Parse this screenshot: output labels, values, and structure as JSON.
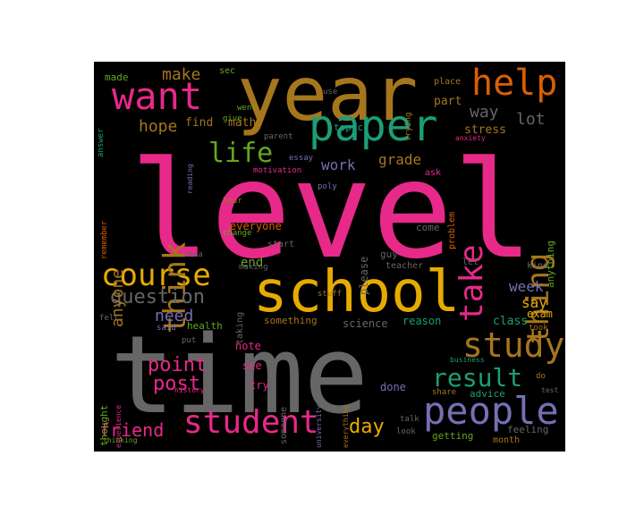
{
  "colors": {
    "pink": "#e7298a",
    "gray": "#666666",
    "gold": "#a6761d",
    "yellow": "#e6ab02",
    "teal": "#1b9e77",
    "orange": "#d95f02",
    "purple": "#7570b3",
    "green": "#66a61e"
  },
  "words": [
    {
      "text": "level",
      "color": "pink"
    },
    {
      "text": "time",
      "color": "gray"
    },
    {
      "text": "year",
      "color": "gold"
    },
    {
      "text": "school",
      "color": "yellow"
    },
    {
      "text": "paper",
      "color": "teal"
    },
    {
      "text": "want",
      "color": "pink"
    },
    {
      "text": "help",
      "color": "orange"
    },
    {
      "text": "people",
      "color": "purple"
    },
    {
      "text": "study",
      "color": "gold"
    },
    {
      "text": "student",
      "color": "pink"
    },
    {
      "text": "course",
      "color": "yellow"
    },
    {
      "text": "think",
      "color": "gold"
    },
    {
      "text": "take",
      "color": "pink"
    },
    {
      "text": "thing",
      "color": "gold"
    },
    {
      "text": "life",
      "color": "green"
    },
    {
      "text": "result",
      "color": "teal"
    },
    {
      "text": "question",
      "color": "gray"
    },
    {
      "text": "point",
      "color": "pink"
    },
    {
      "text": "post",
      "color": "pink"
    },
    {
      "text": "friend",
      "color": "pink"
    },
    {
      "text": "day",
      "color": "yellow"
    },
    {
      "text": "need",
      "color": "purple"
    },
    {
      "text": "make",
      "color": "gold"
    },
    {
      "text": "hope",
      "color": "gold"
    },
    {
      "text": "way",
      "color": "gray"
    },
    {
      "text": "lot",
      "color": "gray"
    },
    {
      "text": "work",
      "color": "purple"
    },
    {
      "text": "grade",
      "color": "gold"
    },
    {
      "text": "anyone",
      "color": "gold"
    },
    {
      "text": "week",
      "color": "purple"
    },
    {
      "text": "say",
      "color": "yellow"
    },
    {
      "text": "end",
      "color": "green"
    },
    {
      "text": "find",
      "color": "gold"
    },
    {
      "text": "math",
      "color": "gold"
    },
    {
      "text": "stress",
      "color": "gold"
    },
    {
      "text": "part",
      "color": "gold"
    },
    {
      "text": "topic",
      "color": "teal"
    },
    {
      "text": "exam",
      "color": "yellow"
    },
    {
      "text": "class",
      "color": "teal"
    },
    {
      "text": "reason",
      "color": "teal"
    },
    {
      "text": "science",
      "color": "gray"
    },
    {
      "text": "something",
      "color": "gold"
    },
    {
      "text": "health",
      "color": "green"
    },
    {
      "text": "note",
      "color": "pink"
    },
    {
      "text": "see",
      "color": "pink"
    },
    {
      "text": "try",
      "color": "pink"
    },
    {
      "text": "done",
      "color": "purple"
    },
    {
      "text": "advice",
      "color": "teal"
    },
    {
      "text": "getting",
      "color": "green"
    },
    {
      "text": "feeling",
      "color": "gray"
    },
    {
      "text": "month",
      "color": "gold"
    },
    {
      "text": "everyone",
      "color": "orange"
    },
    {
      "text": "start",
      "color": "gray"
    },
    {
      "text": "guy",
      "color": "gray"
    },
    {
      "text": "come",
      "color": "gray"
    },
    {
      "text": "teacher",
      "color": "gray"
    },
    {
      "text": "let",
      "color": "gray"
    },
    {
      "text": "kind",
      "color": "gray"
    },
    {
      "text": "please",
      "color": "gray"
    },
    {
      "text": "problem",
      "color": "orange"
    },
    {
      "text": "anything",
      "color": "green"
    },
    {
      "text": "made",
      "color": "green"
    },
    {
      "text": "sec",
      "color": "green"
    },
    {
      "text": "went",
      "color": "green"
    },
    {
      "text": "give",
      "color": "green"
    },
    {
      "text": "parent",
      "color": "gray"
    },
    {
      "text": "essay",
      "color": "purple"
    },
    {
      "text": "motivation",
      "color": "pink"
    },
    {
      "text": "poly",
      "color": "purple"
    },
    {
      "text": "hour",
      "color": "gold"
    },
    {
      "text": "change",
      "color": "green"
    },
    {
      "text": "idea",
      "color": "gray"
    },
    {
      "text": "making",
      "color": "gray"
    },
    {
      "text": "stuff",
      "color": "gold"
    },
    {
      "text": "taking",
      "color": "gray"
    },
    {
      "text": "felt",
      "color": "gray"
    },
    {
      "text": "said",
      "color": "purple"
    },
    {
      "text": "put",
      "color": "gray"
    },
    {
      "text": "thought",
      "color": "green"
    },
    {
      "text": "experience",
      "color": "pink"
    },
    {
      "text": "history",
      "color": "pink"
    },
    {
      "text": "thinking",
      "color": "green"
    },
    {
      "text": "someone",
      "color": "gray"
    },
    {
      "text": "university",
      "color": "purple"
    },
    {
      "text": "everything",
      "color": "gold"
    },
    {
      "text": "talk",
      "color": "gray"
    },
    {
      "text": "look",
      "color": "gray"
    },
    {
      "text": "share",
      "color": "gold"
    },
    {
      "text": "business",
      "color": "teal"
    },
    {
      "text": "took",
      "color": "gold"
    },
    {
      "text": "do",
      "color": "gold"
    },
    {
      "text": "test",
      "color": "gray"
    },
    {
      "text": "answer",
      "color": "teal"
    },
    {
      "text": "reading",
      "color": "purple"
    },
    {
      "text": "remember",
      "color": "orange"
    },
    {
      "text": "use",
      "color": "gray"
    },
    {
      "text": "trying",
      "color": "gold"
    },
    {
      "text": "place",
      "color": "gold"
    },
    {
      "text": "anxiety",
      "color": "pink"
    },
    {
      "text": "ask",
      "color": "pink"
    }
  ]
}
